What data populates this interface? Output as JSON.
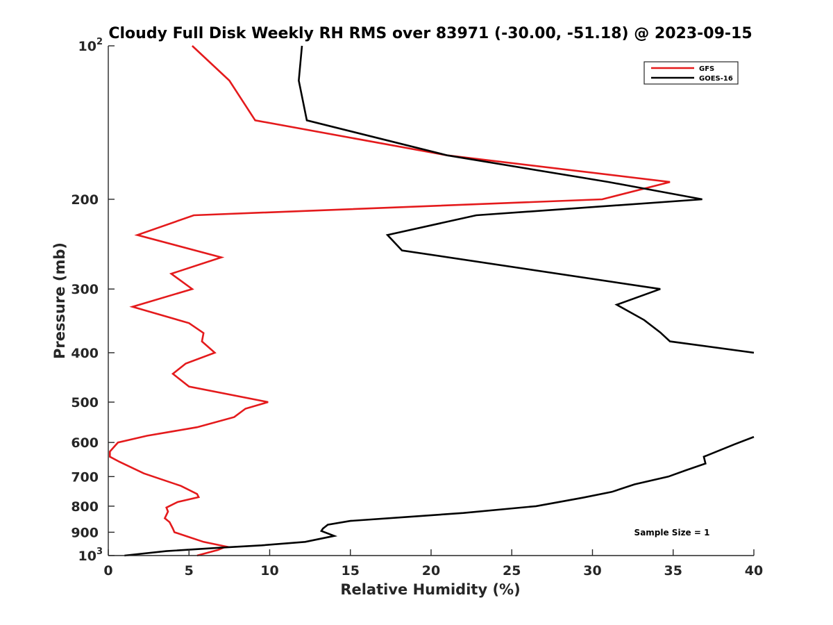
{
  "chart_data": {
    "type": "line",
    "title": "Cloudy Full Disk Weekly RH RMS over 83971 (-30.00, -51.18) @ 2023-09-15",
    "xlabel": "Relative Humidity (%)",
    "ylabel": "Pressure (mb)",
    "xlim": [
      0,
      40
    ],
    "ylim": [
      100,
      1000
    ],
    "y_scale": "log",
    "y_reversed": true,
    "grid": false,
    "legend_position": "top-right",
    "x_ticks": [
      "0",
      "5",
      "10",
      "15",
      "20",
      "25",
      "30",
      "35",
      "40"
    ],
    "y_ticks": [
      {
        "value": 100,
        "base": "10",
        "exp": "2"
      },
      {
        "value": 200,
        "label": "200"
      },
      {
        "value": 300,
        "label": "300"
      },
      {
        "value": 400,
        "label": "400"
      },
      {
        "value": 500,
        "label": "500"
      },
      {
        "value": 600,
        "label": "600"
      },
      {
        "value": 700,
        "label": "700"
      },
      {
        "value": 800,
        "label": "800"
      },
      {
        "value": 900,
        "label": "900"
      },
      {
        "value": 1000,
        "base": "10",
        "exp": "3"
      }
    ],
    "annotation": "Sample Size = 1",
    "series": [
      {
        "name": "GFS",
        "color": "#e41a1c",
        "points": [
          {
            "x": 5.2,
            "p": 100
          },
          {
            "x": 7.5,
            "p": 117
          },
          {
            "x": 9.1,
            "p": 140
          },
          {
            "x": 21.0,
            "p": 164
          },
          {
            "x": 34.8,
            "p": 185
          },
          {
            "x": 30.6,
            "p": 200
          },
          {
            "x": 5.3,
            "p": 215
          },
          {
            "x": 1.8,
            "p": 235
          },
          {
            "x": 7.0,
            "p": 260
          },
          {
            "x": 3.9,
            "p": 280
          },
          {
            "x": 5.2,
            "p": 300
          },
          {
            "x": 1.5,
            "p": 325
          },
          {
            "x": 5.0,
            "p": 350
          },
          {
            "x": 5.9,
            "p": 366
          },
          {
            "x": 5.8,
            "p": 380
          },
          {
            "x": 6.6,
            "p": 400
          },
          {
            "x": 4.8,
            "p": 420
          },
          {
            "x": 4.0,
            "p": 440
          },
          {
            "x": 5.0,
            "p": 466
          },
          {
            "x": 9.9,
            "p": 500
          },
          {
            "x": 8.5,
            "p": 515
          },
          {
            "x": 7.8,
            "p": 535
          },
          {
            "x": 5.5,
            "p": 560
          },
          {
            "x": 2.4,
            "p": 582
          },
          {
            "x": 0.6,
            "p": 600
          },
          {
            "x": 0.1,
            "p": 625
          },
          {
            "x": 0.1,
            "p": 640
          },
          {
            "x": 0.7,
            "p": 655
          },
          {
            "x": 2.2,
            "p": 690
          },
          {
            "x": 4.5,
            "p": 730
          },
          {
            "x": 5.5,
            "p": 757
          },
          {
            "x": 5.6,
            "p": 768
          },
          {
            "x": 4.3,
            "p": 785
          },
          {
            "x": 3.6,
            "p": 805
          },
          {
            "x": 3.7,
            "p": 820
          },
          {
            "x": 3.5,
            "p": 845
          },
          {
            "x": 3.8,
            "p": 860
          },
          {
            "x": 4.0,
            "p": 885
          },
          {
            "x": 4.1,
            "p": 900
          },
          {
            "x": 5.0,
            "p": 920
          },
          {
            "x": 5.9,
            "p": 940
          },
          {
            "x": 7.3,
            "p": 960
          },
          {
            "x": 6.8,
            "p": 975
          },
          {
            "x": 5.5,
            "p": 1000
          }
        ]
      },
      {
        "name": "GOES-16",
        "color": "#000000",
        "points": [
          {
            "x": 12.0,
            "p": 100
          },
          {
            "x": 11.8,
            "p": 117
          },
          {
            "x": 12.3,
            "p": 140
          },
          {
            "x": 21.0,
            "p": 164
          },
          {
            "x": 31.0,
            "p": 185
          },
          {
            "x": 36.8,
            "p": 200
          },
          {
            "x": 22.8,
            "p": 215
          },
          {
            "x": 17.3,
            "p": 235
          },
          {
            "x": 18.2,
            "p": 252
          },
          {
            "x": 34.2,
            "p": 300
          },
          {
            "x": 31.5,
            "p": 322
          },
          {
            "x": 33.2,
            "p": 345
          },
          {
            "x": 34.2,
            "p": 365
          },
          {
            "x": 34.8,
            "p": 380
          },
          {
            "x": 40.0,
            "p": 400
          },
          {
            "x": null,
            "p": null
          },
          {
            "x": 40.0,
            "p": 585
          },
          {
            "x": 38.8,
            "p": 605
          },
          {
            "x": 37.7,
            "p": 625
          },
          {
            "x": 36.9,
            "p": 640
          },
          {
            "x": 37.0,
            "p": 660
          },
          {
            "x": 35.8,
            "p": 680
          },
          {
            "x": 34.7,
            "p": 700
          },
          {
            "x": 32.6,
            "p": 725
          },
          {
            "x": 31.2,
            "p": 750
          },
          {
            "x": 29.4,
            "p": 770
          },
          {
            "x": 26.5,
            "p": 800
          },
          {
            "x": 22.0,
            "p": 825
          },
          {
            "x": 18.5,
            "p": 840
          },
          {
            "x": 15.0,
            "p": 855
          },
          {
            "x": 13.6,
            "p": 870
          },
          {
            "x": 13.3,
            "p": 885
          },
          {
            "x": 13.2,
            "p": 895
          },
          {
            "x": 14.0,
            "p": 915
          },
          {
            "x": 12.2,
            "p": 940
          },
          {
            "x": 9.5,
            "p": 955
          },
          {
            "x": 7.0,
            "p": 965
          },
          {
            "x": 3.6,
            "p": 980
          },
          {
            "x": 1.0,
            "p": 1000
          }
        ]
      }
    ]
  }
}
